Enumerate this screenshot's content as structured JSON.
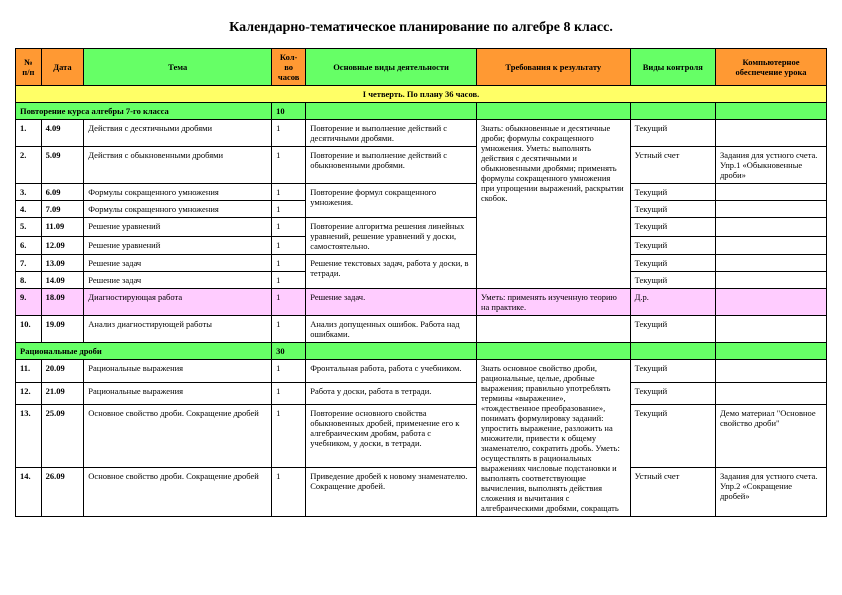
{
  "title": "Календарно-тематическое планирование по алгебре 8 класс.",
  "headers": {
    "num": "№ п/п",
    "date": "Дата",
    "topic": "Тема",
    "hours": "Кол-во часов",
    "activity": "Основные виды деятельности",
    "req": "Требования к результату",
    "control": "Виды контроля",
    "computer": "Компьютерное обеспечение урока"
  },
  "quarter": "I четверть. По плану 36 часов.",
  "section1": {
    "title": "Повторение курса алгебры 7-го класса",
    "hours": "10"
  },
  "section2": {
    "title": "Рациональные дроби",
    "hours": "30"
  },
  "req1": "Знать: обыкновенные и десятичные дроби; формулы сокращенного умножения.\nУметь: выполнять действия с десятичными  и обыкновенными дробями; применять формулы сокращенного умножения при упрощении выражений, раскрытии скобок.",
  "req9": "Уметь: применять изученную теорию на практике.",
  "req11": "Знать основное свойство дроби, рациональные, целые, дробные выражения; правильно употреблять термины «выражение», «тождественное преобразование», понимать формулировку заданий: упростить выражение, разложить на множители, привести к общему знаменателю, сократить дробь.\nУметь: осуществлять в рациональных выражениях числовые подстановки и выполнять соответствующие вычисления, выполнять действия сложения и вычитания с алгебраическими дробями, сокращать",
  "rows": [
    {
      "n": "1.",
      "d": "4.09",
      "t": "Действия с десятичными дробями",
      "h": "1",
      "a": "Повторение и выполнение действий с десятичными дробями.",
      "c": "Текущий",
      "comp": ""
    },
    {
      "n": "2.",
      "d": "5.09",
      "t": "Действия с обыкновенными дробями",
      "h": "1",
      "a": "Повторение и выполнение действий с обыкновенными дробями.",
      "c": "Устный счет",
      "comp": "Задания для устного счета. Упр.1 «Обыкновенные дроби»"
    },
    {
      "n": "3.",
      "d": "6.09",
      "t": "Формулы сокращенного умножения",
      "h": "1",
      "a": "",
      "c": "Текущий",
      "comp": ""
    },
    {
      "n": "4.",
      "d": "7.09",
      "t": "Формулы сокращенного умножения",
      "h": "1",
      "a": "",
      "c": "Текущий",
      "comp": ""
    },
    {
      "n": "5.",
      "d": "11.09",
      "t": "Решение уравнений",
      "h": "1",
      "a": "Повторение алгоритма решения линейных уравнений, решение уравнений у доски, самостоятельно.",
      "c": "Текущий",
      "comp": ""
    },
    {
      "n": "6.",
      "d": "12.09",
      "t": "Решение уравнений",
      "h": "1",
      "a": "",
      "c": "Текущий",
      "comp": ""
    },
    {
      "n": "7.",
      "d": "13.09",
      "t": "Решение задач",
      "h": "1",
      "a": "",
      "c": "Текущий",
      "comp": ""
    },
    {
      "n": "8.",
      "d": "14.09",
      "t": "Решение задач",
      "h": "1",
      "a": "",
      "c": "Текущий",
      "comp": ""
    },
    {
      "n": "9.",
      "d": "18.09",
      "t": "Диагностирующая работа",
      "h": "1",
      "a": "Решение задач.",
      "c": "Д.р.",
      "comp": ""
    },
    {
      "n": "10.",
      "d": "19.09",
      "t": "Анализ диагностирующей работы",
      "h": "1",
      "a": "Анализ допущенных ошибок. Работа над ошибками.",
      "c": "Текущий",
      "comp": ""
    },
    {
      "n": "11.",
      "d": "20.09",
      "t": "Рациональные выражения",
      "h": "1",
      "a": "Фронтальная работа,  работа с учебником.",
      "c": "Текущий",
      "comp": ""
    },
    {
      "n": "12.",
      "d": "21.09",
      "t": "Рациональные выражения",
      "h": "1",
      "a": "Работа у доски, работа в тетради.",
      "c": "Текущий",
      "comp": ""
    },
    {
      "n": "13.",
      "d": "25.09",
      "t": "Основное свойство дроби. Сокращение дробей",
      "h": "1",
      "a": "Повторение основного свойства обыкновенных дробей, применение его к алгебраическим дробям, работа с учебником, у доски, в тетради.",
      "c": "Текущий",
      "comp": "Демо материал \"Основное свойство дроби\""
    },
    {
      "n": "14.",
      "d": "26.09",
      "t": "Основное свойство дроби. Сокращение дробей",
      "h": "1",
      "a": "Приведение дробей к новому знаменателю. Сокращение дробей.",
      "c": "Устный счет",
      "comp": "Задания для устного счета. Упр.2 «Сокращение дробей»"
    }
  ],
  "act34": "Повторение формул сокращенного умножения.",
  "act78": "Решение текстовых задач, работа у доски, в тетради."
}
